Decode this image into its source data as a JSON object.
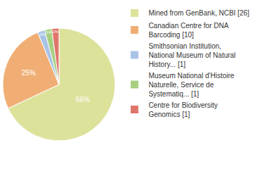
{
  "chart_data": {
    "type": "pie",
    "categories": [
      "Mined from GenBank, NCBI [26]",
      "Canadian Centre for DNA Barcoding [10]",
      "Smithsonian Institution, National Museum of Natural History... [1]",
      "Museum National d'Histoire Naturelle, Service de Systematiq... [1]",
      "Centre for Biodiversity Genomics [1]"
    ],
    "values": [
      66,
      25,
      2,
      2,
      2
    ],
    "value_labels": [
      "66%",
      "25%",
      "2%",
      "2%",
      "2%"
    ],
    "colors": [
      "#dde29b",
      "#f0ae74",
      "#a8c3e6",
      "#a6cf80",
      "#e0766b"
    ],
    "data_labels": true,
    "legend": "right"
  }
}
